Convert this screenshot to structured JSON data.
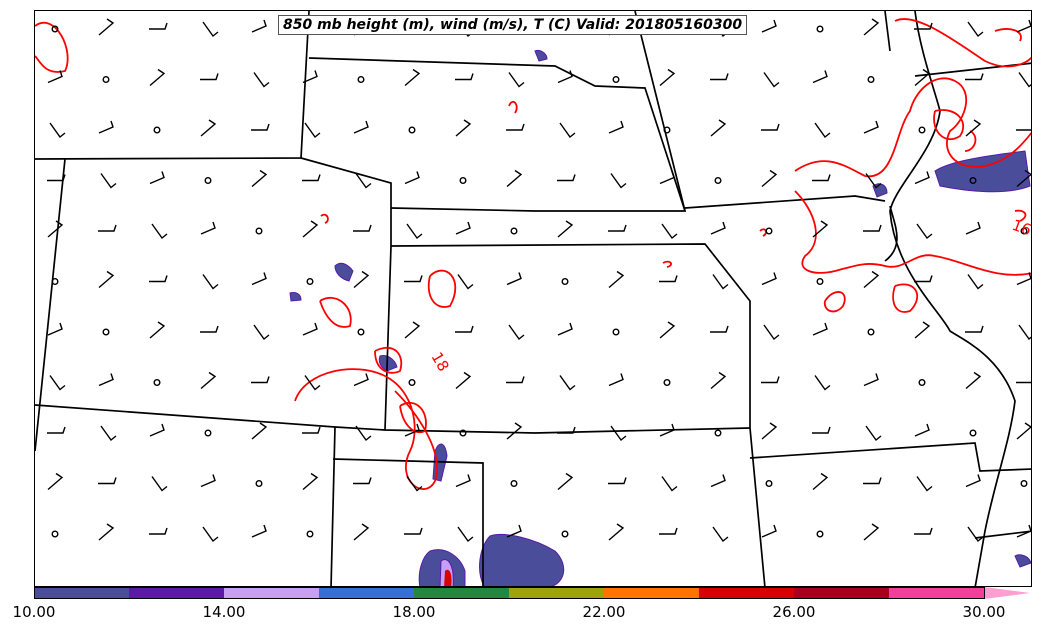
{
  "title": "850 mb height (m), wind (m/s), T (C) Valid: 201805160300",
  "contour_labels": [
    {
      "text": "18",
      "color": "#ff0000"
    },
    {
      "text": "16",
      "color": "#ff0000"
    }
  ],
  "colorbar": {
    "colors": [
      "#4a4e9a",
      "#5a19a8",
      "#c79ff4",
      "#3470d8",
      "#23873f",
      "#9ea20c",
      "#ff7400",
      "#d80000",
      "#a8001e",
      "#f0409c",
      "#ff9ed0"
    ],
    "ticks": [
      "10.00",
      "14.00",
      "18.00",
      "22.00",
      "26.00",
      "30.00"
    ]
  },
  "colors": {
    "temperature_contour": "#ff0000",
    "boundaries": "#000000",
    "precip_low": "#4a4e9a",
    "precip_mid": "#5a19a8"
  }
}
